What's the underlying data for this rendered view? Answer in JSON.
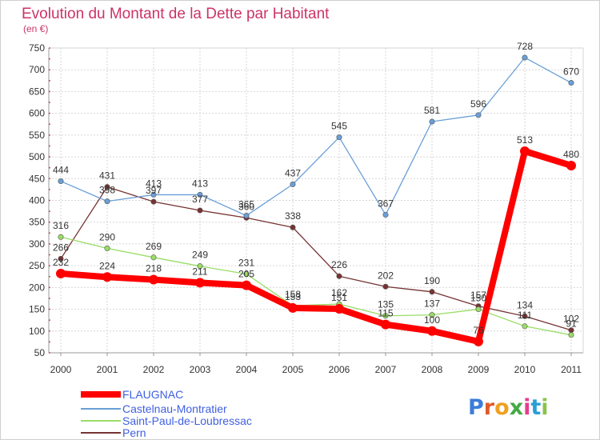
{
  "chart_data": {
    "type": "line",
    "title": "Evolution du Montant de la Dette par Habitant",
    "subtitle": "(en €)",
    "x": [
      "2000",
      "2001",
      "2002",
      "2003",
      "2004",
      "2005",
      "2006",
      "2007",
      "2008",
      "2009",
      "2010",
      "2011"
    ],
    "ylim": [
      50,
      750
    ],
    "yticks": [
      50,
      100,
      150,
      200,
      250,
      300,
      350,
      400,
      450,
      500,
      550,
      600,
      650,
      700,
      750
    ],
    "grid": true,
    "legend_position": "bottom-left",
    "series": [
      {
        "name": "FLAUGNAC",
        "color": "#ff0000",
        "values": [
          232,
          224,
          218,
          211,
          205,
          153,
          151,
          115,
          100,
          76,
          513,
          480
        ]
      },
      {
        "name": "Castelnau-Montratier",
        "color": "#6a9fd8",
        "values": [
          444,
          398,
          413,
          413,
          365,
          437,
          545,
          367,
          581,
          596,
          728,
          670
        ]
      },
      {
        "name": "Saint-Paul-de-Loubressac",
        "color": "#99dd66",
        "values": [
          316,
          290,
          269,
          249,
          231,
          158,
          162,
          135,
          137,
          150,
          111,
          91
        ]
      },
      {
        "name": "Pern",
        "color": "#773333",
        "values": [
          266,
          431,
          397,
          377,
          360,
          338,
          226,
          202,
          190,
          157,
          134,
          102
        ]
      }
    ]
  },
  "logo": {
    "text": "Proxiti",
    "letter_colors": [
      "#3b7dd8",
      "#e05a2a",
      "#f0a020",
      "#44aa44",
      "#e83c8c",
      "#2a9fd6",
      "#8bc34a"
    ]
  }
}
